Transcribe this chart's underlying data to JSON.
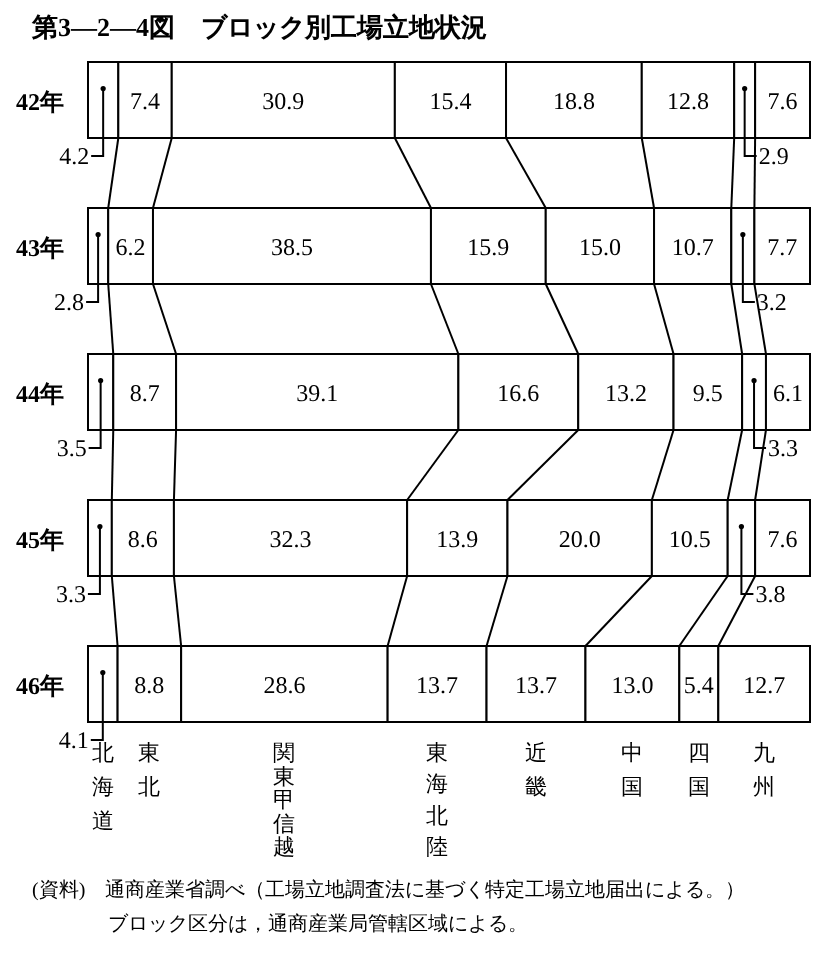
{
  "chart_data": {
    "type": "bar",
    "orientation": "horizontal",
    "stacked": true,
    "title": "第3—2—4図　ブロック別工場立地状況",
    "categories": [
      "42年",
      "43年",
      "44年",
      "45年",
      "46年"
    ],
    "xlim": [
      0,
      100
    ],
    "series": [
      {
        "name": "北海道",
        "color": "#ffffff",
        "values": [
          4.2,
          2.8,
          3.5,
          3.3,
          4.1
        ],
        "value_labels": [
          "4.2",
          "2.8",
          "3.5",
          "3.3",
          "4.1"
        ]
      },
      {
        "name": "東北",
        "color": "#ffffff",
        "values": [
          7.4,
          6.2,
          8.7,
          8.6,
          8.8
        ],
        "value_labels": [
          "7.4",
          "6.2",
          "8.7",
          "8.6",
          "8.8"
        ]
      },
      {
        "name": "関東甲信越",
        "color": "#ffffff",
        "values": [
          30.9,
          38.5,
          39.1,
          32.3,
          28.6
        ],
        "value_labels": [
          "30.9",
          "38.5",
          "39.1",
          "32.3",
          "28.6"
        ]
      },
      {
        "name": "東海北陸",
        "color": "#ffffff",
        "values": [
          15.4,
          15.9,
          16.6,
          13.9,
          13.7
        ],
        "value_labels": [
          "15.4",
          "15.9",
          "16.6",
          "13.9",
          "13.7"
        ]
      },
      {
        "name": "近畿",
        "color": "#ffffff",
        "values": [
          18.8,
          15.0,
          13.2,
          20.0,
          13.7
        ],
        "value_labels": [
          "18.8",
          "15.0",
          "13.2",
          "20.0",
          "13.7"
        ]
      },
      {
        "name": "中国",
        "color": "#ffffff",
        "values": [
          12.8,
          10.7,
          9.5,
          10.5,
          13.0
        ],
        "value_labels": [
          "12.8",
          "10.7",
          "9.5",
          "10.5",
          "13.0"
        ]
      },
      {
        "name": "四国",
        "color": "#ffffff",
        "values": [
          2.9,
          3.2,
          3.3,
          3.8,
          5.4
        ],
        "value_labels": [
          "2.9",
          "3.2",
          "3.3",
          "3.8",
          "5.4"
        ]
      },
      {
        "name": "九州",
        "color": "#ffffff",
        "values": [
          7.6,
          7.7,
          6.1,
          7.6,
          12.7
        ],
        "value_labels": [
          "7.6",
          "7.7",
          "6.1",
          "7.6",
          "12.7"
        ]
      }
    ],
    "annotations": [
      "(資料)　通商産業省調べ（工場立地調査法に基づく特定工場立地届出による。）",
      "ブロック区分は，通商産業局管轄区域による。"
    ]
  }
}
